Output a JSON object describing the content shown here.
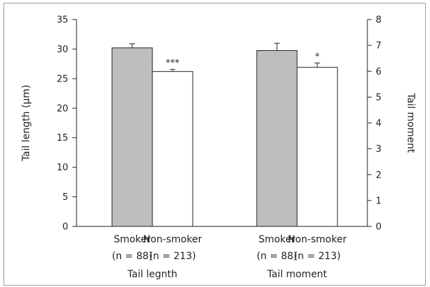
{
  "chart_data": {
    "type": "bar",
    "groups": [
      "Tail legnth",
      "Tail moment"
    ],
    "series": [
      {
        "name": "Smoker",
        "n_label": "(n = 88)",
        "color": "#bebebe"
      },
      {
        "name": "Non-smoker",
        "n_label": "(n = 213)",
        "color": "#ffffff"
      }
    ],
    "bars": [
      {
        "group": 0,
        "series": 0,
        "axis": "left",
        "value": 30.2,
        "error": 0.7,
        "sig": ""
      },
      {
        "group": 0,
        "series": 1,
        "axis": "left",
        "value": 26.2,
        "error": 0.35,
        "sig": "***"
      },
      {
        "group": 1,
        "series": 0,
        "axis": "right",
        "value": 6.8,
        "error": 0.28,
        "sig": ""
      },
      {
        "group": 1,
        "series": 1,
        "axis": "right",
        "value": 6.15,
        "error": 0.17,
        "sig": "*"
      }
    ],
    "y_left": {
      "label": "Tail length (μm)",
      "min": 0,
      "max": 35,
      "ticks": [
        0,
        5,
        10,
        15,
        20,
        25,
        30,
        35
      ]
    },
    "y_right": {
      "label": "Tail moment",
      "min": 0,
      "max": 8,
      "ticks": [
        0,
        1,
        2,
        3,
        4,
        5,
        6,
        7,
        8
      ]
    },
    "grid": false,
    "legend": "none"
  }
}
